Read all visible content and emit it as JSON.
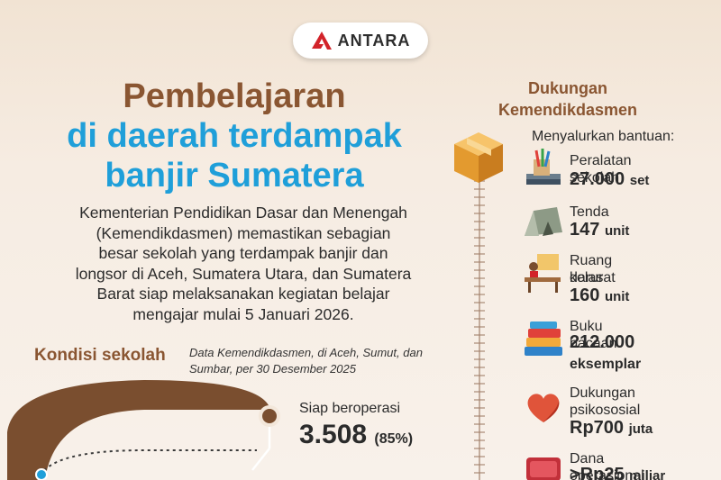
{
  "logo": {
    "text": "ANTARA"
  },
  "title": {
    "line1": "Pembelajaran",
    "line2": "di daerah terdampak",
    "line3": "banjir Sumatera"
  },
  "description": [
    "Kementerian Pendidikan Dasar dan Menengah",
    "(Kemendikdasmen) memastikan sebagian",
    "besar sekolah yang terdampak banjir dan",
    "longsor di Aceh, Sumatera Utara, dan Sumatera",
    "Barat siap melaksanakan kegiatan belajar",
    "mengajar mulai 5 Januari 2026."
  ],
  "kondisi": {
    "title": "Kondisi sekolah",
    "source_line1": "Data Kemendikdasmen, di Aceh, Sumut, dan",
    "source_line2": "Sumbar, per 30 Desember 2025",
    "siap_label": "Siap beroperasi",
    "siap_value": "3.508",
    "siap_pct": "(85%)"
  },
  "chart_data": {
    "type": "pie",
    "categories": [
      "Siap beroperasi"
    ],
    "values": [
      3508
    ],
    "percent": [
      85
    ]
  },
  "dukungan": {
    "title_line1": "Dukungan",
    "title_line2": "Kemendikdasmen",
    "subtitle": "Menyalurkan bantuan:",
    "items": [
      {
        "icon": "school-supplies-icon",
        "label1": "Peralatan sekolah",
        "label2": "",
        "value": "27.000",
        "unit": "set"
      },
      {
        "icon": "tent-icon",
        "label1": "Tenda",
        "label2": "",
        "value": "147",
        "unit": "unit"
      },
      {
        "icon": "classroom-desk-icon",
        "label1": "Ruang kelas",
        "label2": "darurat",
        "value": "160",
        "unit": "unit"
      },
      {
        "icon": "books-icon",
        "label1": "Buku bacaan",
        "label2": "",
        "value": "212.000",
        "unit": "eksemplar"
      },
      {
        "icon": "heart-icon",
        "label1": "Dukungan",
        "label2": "psikososial",
        "value": "Rp700",
        "unit": "juta"
      },
      {
        "icon": "money-icon",
        "label1": "Dana operasional",
        "label2": "",
        "value": ">Rp25",
        "unit": "miliar"
      }
    ]
  },
  "colors": {
    "brown": "#8a5632",
    "blue": "#1f9fd9",
    "arc": "#7a4e2f",
    "accent_red": "#d2232a"
  }
}
